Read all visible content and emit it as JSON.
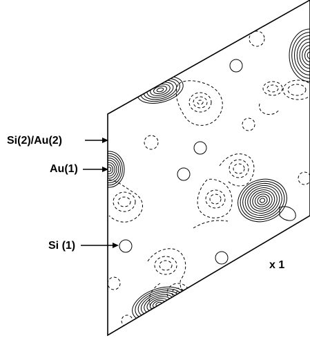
{
  "labels": {
    "si2_au2": "Si(2)/Au(2)",
    "au1": "Au(1)",
    "si1": "Si (1)",
    "scale": "x 1"
  },
  "colors": {
    "ink": "#000000",
    "background": "#ffffff"
  }
}
